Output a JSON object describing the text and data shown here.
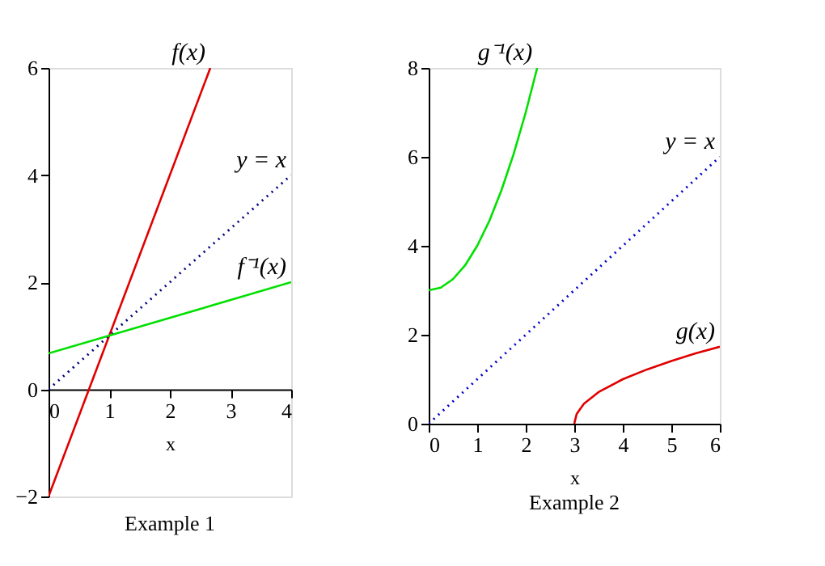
{
  "chart_data": [
    {
      "type": "line",
      "title": "Example 1",
      "xlabel": "x",
      "xlim": [
        0,
        4
      ],
      "ylim": [
        -2,
        6
      ],
      "xticks": [
        0,
        1,
        2,
        3,
        4
      ],
      "yticks": [
        -2,
        0,
        2,
        4,
        6
      ],
      "series": [
        {
          "name": "f(x)",
          "color": "#e00000",
          "line_style": "solid",
          "x": [
            0,
            2.667
          ],
          "values": [
            -2,
            6
          ]
        },
        {
          "name": "y = x",
          "color": "#000080",
          "line_style": "dotted",
          "x": [
            0,
            4
          ],
          "values": [
            0,
            4
          ]
        },
        {
          "name": "f⁻¹(x)",
          "color": "#00e000",
          "line_style": "solid",
          "x": [
            0,
            4
          ],
          "values": [
            0.67,
            2
          ]
        }
      ]
    },
    {
      "type": "line",
      "title": "Example 2",
      "xlabel": "x",
      "xlim": [
        0,
        6
      ],
      "ylim": [
        0,
        8
      ],
      "xticks": [
        0,
        1,
        2,
        3,
        4,
        5,
        6
      ],
      "yticks": [
        0,
        2,
        4,
        6,
        8
      ],
      "series": [
        {
          "name": "g⁻¹(x)",
          "color": "#00e000",
          "line_style": "solid",
          "x": [
            0,
            0.25,
            0.5,
            0.75,
            1,
            1.25,
            1.5,
            1.75,
            2,
            2.236
          ],
          "values": [
            3,
            3.06,
            3.25,
            3.56,
            4,
            4.56,
            5.25,
            6.06,
            7,
            8
          ]
        },
        {
          "name": "y = x",
          "color": "#0000cc",
          "line_style": "dotted",
          "x": [
            0,
            6
          ],
          "values": [
            0,
            6
          ]
        },
        {
          "name": "g(x)",
          "color": "#e00000",
          "line_style": "solid",
          "x": [
            3,
            3.05,
            3.2,
            3.5,
            4,
            4.5,
            5,
            5.5,
            6
          ],
          "values": [
            0,
            0.22,
            0.45,
            0.71,
            1,
            1.22,
            1.41,
            1.58,
            1.73
          ]
        }
      ]
    }
  ]
}
